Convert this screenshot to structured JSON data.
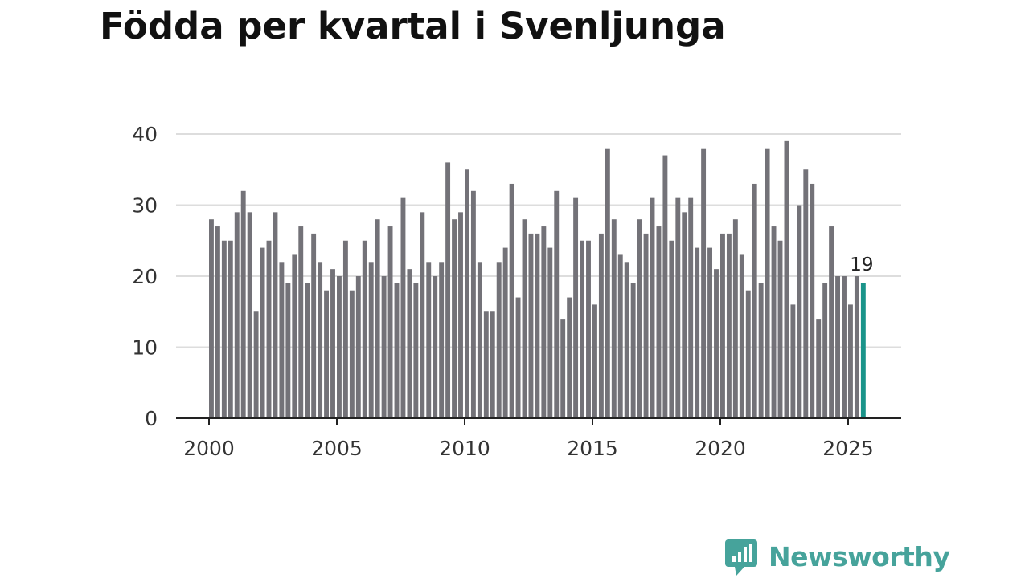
{
  "title": "Födda per kvartal i Svenljunga",
  "brand": {
    "name": "Newsworthy",
    "icon": "newsworthy-logo-icon"
  },
  "colors": {
    "bar": "#737278",
    "highlight": "#1a948a",
    "grid": "#dddddd",
    "axis": "#222222",
    "brand": "#46a39b"
  },
  "chart_data": {
    "type": "bar",
    "title": "Födda per kvartal i Svenljunga",
    "xlabel": "",
    "ylabel": "",
    "ylim": [
      0,
      40
    ],
    "yticks": [
      0,
      10,
      20,
      30,
      40
    ],
    "xticks": [
      2000,
      2005,
      2010,
      2015,
      2020,
      2025
    ],
    "x_start_year": 2000,
    "periods_per_year": 4,
    "grid": true,
    "highlight_last": true,
    "last_label": "19",
    "values": [
      28,
      27,
      25,
      25,
      29,
      32,
      29,
      15,
      24,
      25,
      29,
      22,
      19,
      23,
      27,
      19,
      26,
      22,
      18,
      21,
      20,
      25,
      18,
      20,
      25,
      22,
      28,
      20,
      27,
      19,
      31,
      21,
      19,
      29,
      22,
      20,
      22,
      36,
      28,
      29,
      35,
      32,
      22,
      15,
      15,
      22,
      24,
      33,
      17,
      28,
      26,
      26,
      27,
      24,
      32,
      14,
      17,
      31,
      25,
      25,
      16,
      26,
      38,
      28,
      23,
      22,
      19,
      28,
      26,
      31,
      27,
      37,
      25,
      31,
      29,
      31,
      24,
      38,
      24,
      21,
      26,
      26,
      28,
      23,
      18,
      33,
      19,
      38,
      27,
      25,
      39,
      16,
      30,
      35,
      33,
      14,
      19,
      27,
      20,
      20,
      16,
      20,
      19
    ]
  }
}
